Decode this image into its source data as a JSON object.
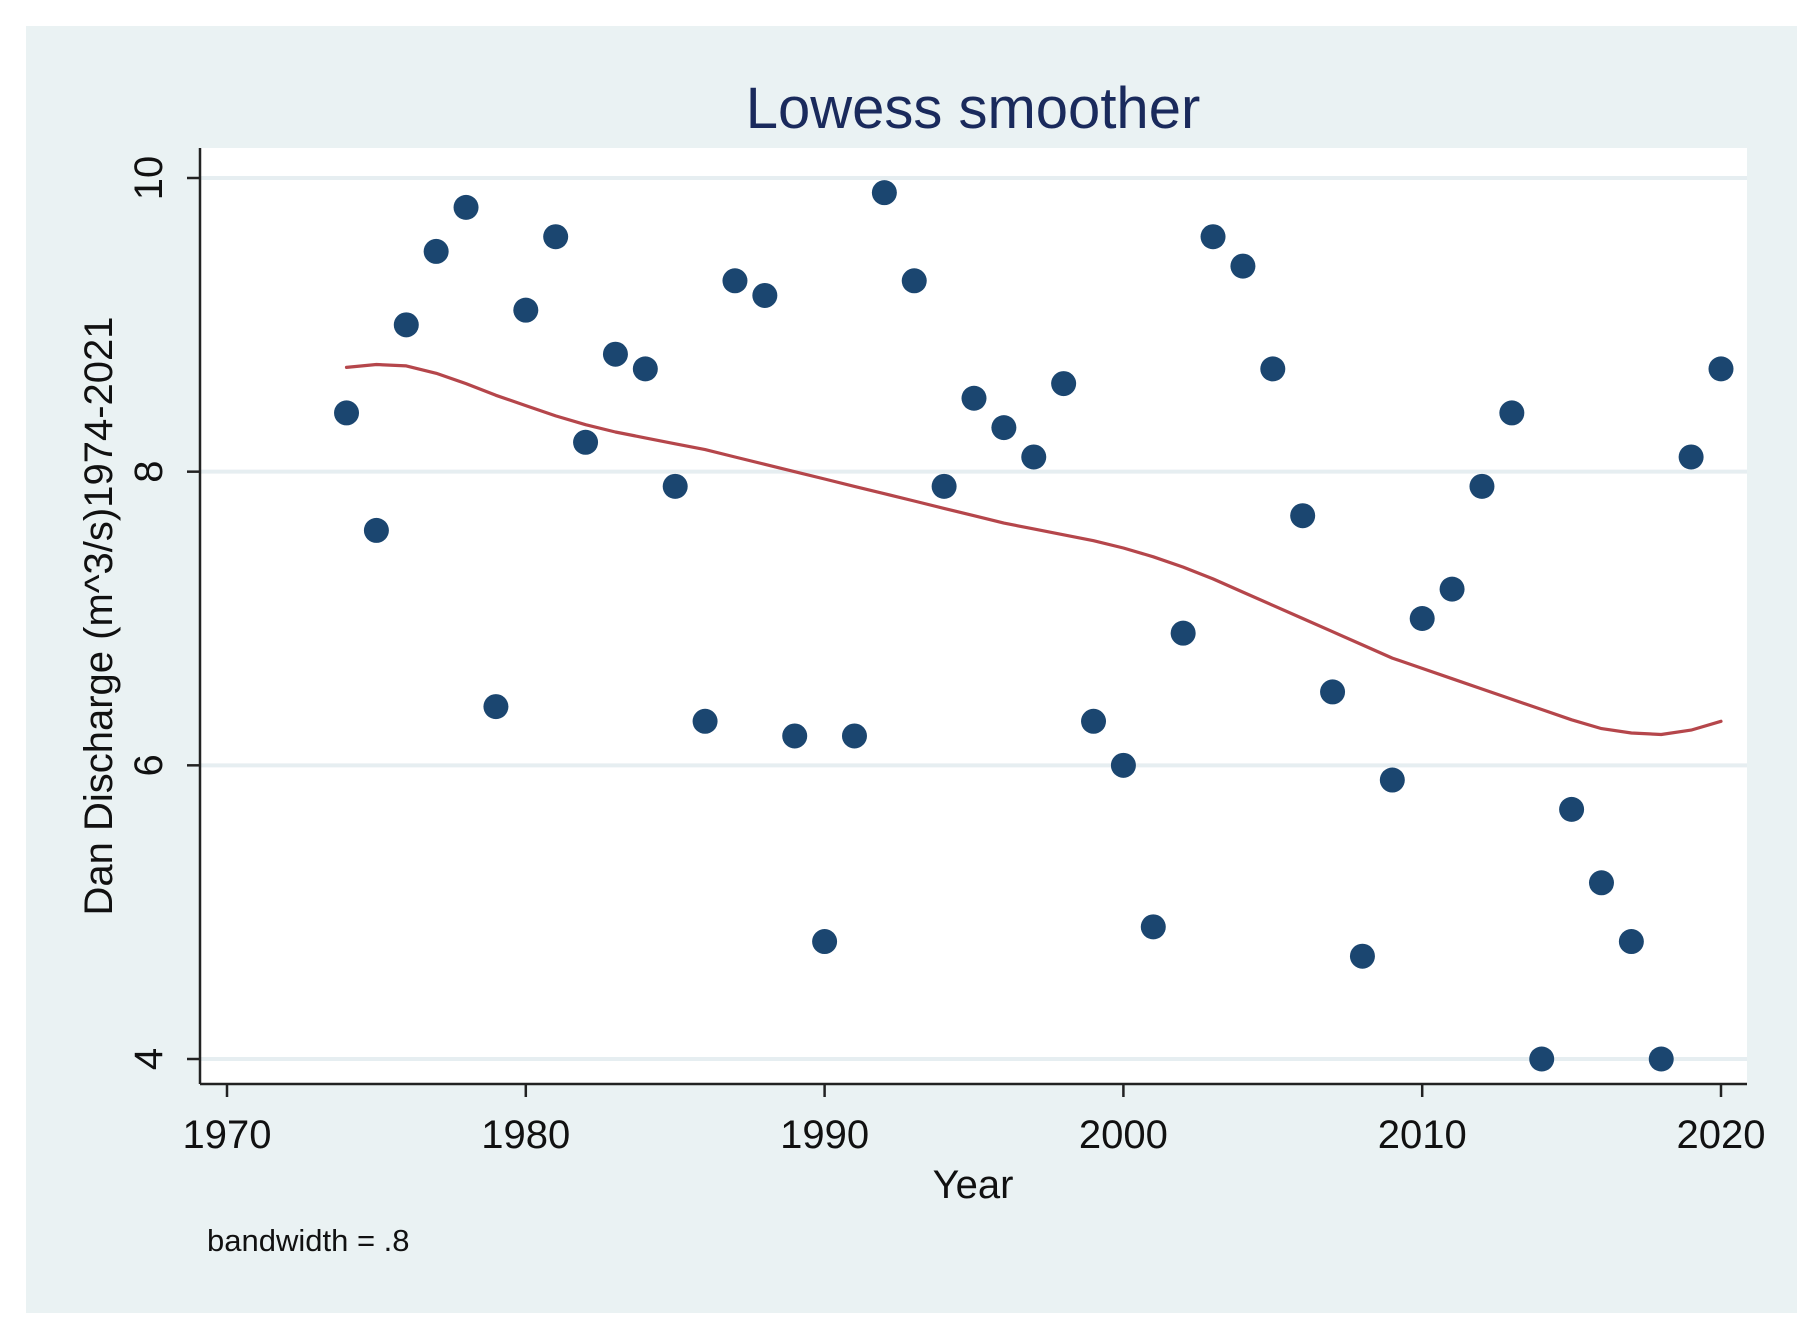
{
  "chart_data": {
    "type": "scatter",
    "title": "Lowess smoother",
    "xlabel": "Year",
    "ylabel": "Dan Discharge (m^3/s)1974-2021",
    "note": "bandwidth = .8",
    "xlim": [
      1970,
      2020
    ],
    "ylim": [
      4,
      10
    ],
    "xticks": [
      1970,
      1980,
      1990,
      2000,
      2010,
      2020
    ],
    "yticks": [
      4,
      6,
      8,
      10
    ],
    "grid": true,
    "colors": {
      "background": "#eaf2f3",
      "plot_area": "#ffffff",
      "markers": "#1b4670",
      "smoother": "#b5464b",
      "gridline": "#e6eef1",
      "axis": "#222222",
      "title": "#1a2a5c"
    },
    "series": [
      {
        "name": "Dan Discharge",
        "type": "scatter",
        "points": [
          [
            1974,
            8.4
          ],
          [
            1975,
            7.6
          ],
          [
            1976,
            9.0
          ],
          [
            1977,
            9.5
          ],
          [
            1978,
            9.8
          ],
          [
            1979,
            6.4
          ],
          [
            1980,
            9.1
          ],
          [
            1981,
            9.6
          ],
          [
            1982,
            8.2
          ],
          [
            1983,
            8.8
          ],
          [
            1984,
            8.7
          ],
          [
            1985,
            7.9
          ],
          [
            1986,
            6.3
          ],
          [
            1987,
            9.3
          ],
          [
            1988,
            9.2
          ],
          [
            1989,
            6.2
          ],
          [
            1990,
            4.8
          ],
          [
            1991,
            6.2
          ],
          [
            1992,
            9.9
          ],
          [
            1993,
            9.3
          ],
          [
            1994,
            7.9
          ],
          [
            1995,
            8.5
          ],
          [
            1996,
            8.3
          ],
          [
            1997,
            8.1
          ],
          [
            1998,
            8.6
          ],
          [
            1999,
            6.3
          ],
          [
            2000,
            6.0
          ],
          [
            2001,
            4.9
          ],
          [
            2002,
            6.9
          ],
          [
            2003,
            9.6
          ],
          [
            2004,
            9.4
          ],
          [
            2005,
            8.7
          ],
          [
            2006,
            7.7
          ],
          [
            2007,
            6.5
          ],
          [
            2008,
            4.7
          ],
          [
            2009,
            5.9
          ],
          [
            2010,
            7.0
          ],
          [
            2011,
            7.2
          ],
          [
            2012,
            7.9
          ],
          [
            2013,
            8.4
          ],
          [
            2014,
            4.0
          ],
          [
            2015,
            5.7
          ],
          [
            2016,
            5.2
          ],
          [
            2017,
            4.8
          ],
          [
            2018,
            4.0
          ],
          [
            2019,
            8.1
          ],
          [
            2020,
            8.7
          ]
        ]
      },
      {
        "name": "Lowess smoother",
        "type": "line",
        "points": [
          [
            1974,
            8.71
          ],
          [
            1975,
            8.73
          ],
          [
            1976,
            8.72
          ],
          [
            1977,
            8.67
          ],
          [
            1978,
            8.6
          ],
          [
            1979,
            8.52
          ],
          [
            1980,
            8.45
          ],
          [
            1981,
            8.38
          ],
          [
            1982,
            8.32
          ],
          [
            1983,
            8.27
          ],
          [
            1984,
            8.23
          ],
          [
            1985,
            8.19
          ],
          [
            1986,
            8.15
          ],
          [
            1987,
            8.1
          ],
          [
            1988,
            8.05
          ],
          [
            1989,
            8.0
          ],
          [
            1990,
            7.95
          ],
          [
            1991,
            7.9
          ],
          [
            1992,
            7.85
          ],
          [
            1993,
            7.8
          ],
          [
            1994,
            7.75
          ],
          [
            1995,
            7.7
          ],
          [
            1996,
            7.65
          ],
          [
            1997,
            7.61
          ],
          [
            1998,
            7.57
          ],
          [
            1999,
            7.53
          ],
          [
            2000,
            7.48
          ],
          [
            2001,
            7.42
          ],
          [
            2002,
            7.35
          ],
          [
            2003,
            7.27
          ],
          [
            2004,
            7.18
          ],
          [
            2005,
            7.09
          ],
          [
            2006,
            7.0
          ],
          [
            2007,
            6.91
          ],
          [
            2008,
            6.82
          ],
          [
            2009,
            6.73
          ],
          [
            2010,
            6.66
          ],
          [
            2011,
            6.59
          ],
          [
            2012,
            6.52
          ],
          [
            2013,
            6.45
          ],
          [
            2014,
            6.38
          ],
          [
            2015,
            6.31
          ],
          [
            2016,
            6.25
          ],
          [
            2017,
            6.22
          ],
          [
            2018,
            6.21
          ],
          [
            2019,
            6.24
          ],
          [
            2020,
            6.3
          ]
        ]
      }
    ]
  }
}
